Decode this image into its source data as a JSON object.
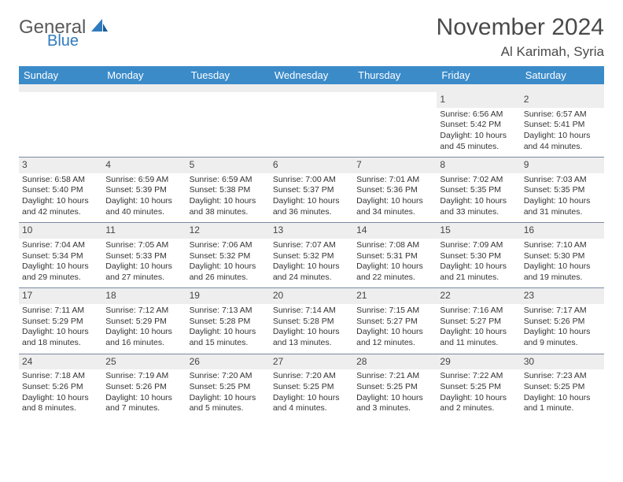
{
  "logo": {
    "word1": "General",
    "word2": "Blue"
  },
  "title": "November 2024",
  "location": "Al Karimah, Syria",
  "colors": {
    "header_bg": "#3b8bc9",
    "header_text": "#ffffff",
    "daynum_bg": "#eeeeee",
    "row_border": "#7a8aa0",
    "text": "#333333",
    "logo_general": "#5a5a5a",
    "logo_blue": "#2f7bbf"
  },
  "weekdays": [
    "Sunday",
    "Monday",
    "Tuesday",
    "Wednesday",
    "Thursday",
    "Friday",
    "Saturday"
  ],
  "weeks": [
    [
      null,
      null,
      null,
      null,
      null,
      {
        "n": "1",
        "sunrise": "6:56 AM",
        "sunset": "5:42 PM",
        "daylight": "10 hours and 45 minutes."
      },
      {
        "n": "2",
        "sunrise": "6:57 AM",
        "sunset": "5:41 PM",
        "daylight": "10 hours and 44 minutes."
      }
    ],
    [
      {
        "n": "3",
        "sunrise": "6:58 AM",
        "sunset": "5:40 PM",
        "daylight": "10 hours and 42 minutes."
      },
      {
        "n": "4",
        "sunrise": "6:59 AM",
        "sunset": "5:39 PM",
        "daylight": "10 hours and 40 minutes."
      },
      {
        "n": "5",
        "sunrise": "6:59 AM",
        "sunset": "5:38 PM",
        "daylight": "10 hours and 38 minutes."
      },
      {
        "n": "6",
        "sunrise": "7:00 AM",
        "sunset": "5:37 PM",
        "daylight": "10 hours and 36 minutes."
      },
      {
        "n": "7",
        "sunrise": "7:01 AM",
        "sunset": "5:36 PM",
        "daylight": "10 hours and 34 minutes."
      },
      {
        "n": "8",
        "sunrise": "7:02 AM",
        "sunset": "5:35 PM",
        "daylight": "10 hours and 33 minutes."
      },
      {
        "n": "9",
        "sunrise": "7:03 AM",
        "sunset": "5:35 PM",
        "daylight": "10 hours and 31 minutes."
      }
    ],
    [
      {
        "n": "10",
        "sunrise": "7:04 AM",
        "sunset": "5:34 PM",
        "daylight": "10 hours and 29 minutes."
      },
      {
        "n": "11",
        "sunrise": "7:05 AM",
        "sunset": "5:33 PM",
        "daylight": "10 hours and 27 minutes."
      },
      {
        "n": "12",
        "sunrise": "7:06 AM",
        "sunset": "5:32 PM",
        "daylight": "10 hours and 26 minutes."
      },
      {
        "n": "13",
        "sunrise": "7:07 AM",
        "sunset": "5:32 PM",
        "daylight": "10 hours and 24 minutes."
      },
      {
        "n": "14",
        "sunrise": "7:08 AM",
        "sunset": "5:31 PM",
        "daylight": "10 hours and 22 minutes."
      },
      {
        "n": "15",
        "sunrise": "7:09 AM",
        "sunset": "5:30 PM",
        "daylight": "10 hours and 21 minutes."
      },
      {
        "n": "16",
        "sunrise": "7:10 AM",
        "sunset": "5:30 PM",
        "daylight": "10 hours and 19 minutes."
      }
    ],
    [
      {
        "n": "17",
        "sunrise": "7:11 AM",
        "sunset": "5:29 PM",
        "daylight": "10 hours and 18 minutes."
      },
      {
        "n": "18",
        "sunrise": "7:12 AM",
        "sunset": "5:29 PM",
        "daylight": "10 hours and 16 minutes."
      },
      {
        "n": "19",
        "sunrise": "7:13 AM",
        "sunset": "5:28 PM",
        "daylight": "10 hours and 15 minutes."
      },
      {
        "n": "20",
        "sunrise": "7:14 AM",
        "sunset": "5:28 PM",
        "daylight": "10 hours and 13 minutes."
      },
      {
        "n": "21",
        "sunrise": "7:15 AM",
        "sunset": "5:27 PM",
        "daylight": "10 hours and 12 minutes."
      },
      {
        "n": "22",
        "sunrise": "7:16 AM",
        "sunset": "5:27 PM",
        "daylight": "10 hours and 11 minutes."
      },
      {
        "n": "23",
        "sunrise": "7:17 AM",
        "sunset": "5:26 PM",
        "daylight": "10 hours and 9 minutes."
      }
    ],
    [
      {
        "n": "24",
        "sunrise": "7:18 AM",
        "sunset": "5:26 PM",
        "daylight": "10 hours and 8 minutes."
      },
      {
        "n": "25",
        "sunrise": "7:19 AM",
        "sunset": "5:26 PM",
        "daylight": "10 hours and 7 minutes."
      },
      {
        "n": "26",
        "sunrise": "7:20 AM",
        "sunset": "5:25 PM",
        "daylight": "10 hours and 5 minutes."
      },
      {
        "n": "27",
        "sunrise": "7:20 AM",
        "sunset": "5:25 PM",
        "daylight": "10 hours and 4 minutes."
      },
      {
        "n": "28",
        "sunrise": "7:21 AM",
        "sunset": "5:25 PM",
        "daylight": "10 hours and 3 minutes."
      },
      {
        "n": "29",
        "sunrise": "7:22 AM",
        "sunset": "5:25 PM",
        "daylight": "10 hours and 2 minutes."
      },
      {
        "n": "30",
        "sunrise": "7:23 AM",
        "sunset": "5:25 PM",
        "daylight": "10 hours and 1 minute."
      }
    ]
  ],
  "labels": {
    "sunrise": "Sunrise:",
    "sunset": "Sunset:",
    "daylight": "Daylight:"
  }
}
